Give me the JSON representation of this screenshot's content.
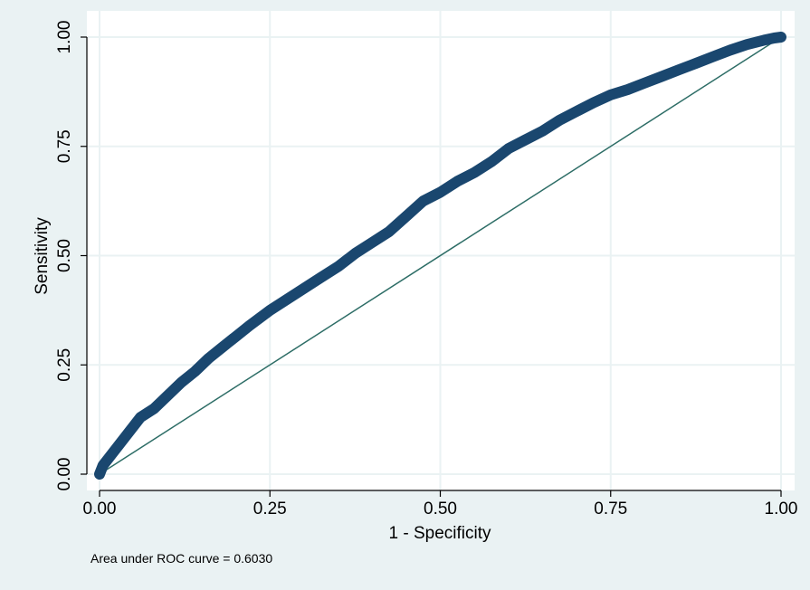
{
  "chart_data": {
    "type": "line",
    "xlabel": "1 - Specificity",
    "ylabel": "Sensitivity",
    "xlim": [
      0,
      1
    ],
    "ylim": [
      0,
      1
    ],
    "xticks": [
      0,
      0.25,
      0.5,
      0.75,
      1
    ],
    "yticks": [
      0,
      0.25,
      0.5,
      0.75,
      1
    ],
    "xtick_labels": [
      "0.00",
      "0.25",
      "0.50",
      "0.75",
      "1.00"
    ],
    "ytick_labels": [
      "0.00",
      "0.25",
      "0.50",
      "0.75",
      "1.00"
    ],
    "grid": true,
    "note": "Area under ROC curve = 0.6030",
    "colors": {
      "background": "#eaf2f3",
      "plot_area": "#ffffff",
      "grid": "#eaf2f3",
      "roc_curve": "#1a476f",
      "reference_line": "#2d6d66"
    },
    "series": [
      {
        "style": "markers",
        "x": [
          0,
          0.005,
          0.015,
          0.03,
          0.045,
          0.06,
          0.08,
          0.1,
          0.12,
          0.14,
          0.16,
          0.18,
          0.2,
          0.22,
          0.25,
          0.275,
          0.3,
          0.325,
          0.35,
          0.375,
          0.4,
          0.425,
          0.45,
          0.475,
          0.5,
          0.525,
          0.55,
          0.575,
          0.6,
          0.625,
          0.65,
          0.675,
          0.7,
          0.725,
          0.75,
          0.775,
          0.8,
          0.825,
          0.85,
          0.875,
          0.9,
          0.925,
          0.95,
          0.975,
          0.99,
          1
        ],
        "y": [
          0,
          0.02,
          0.04,
          0.07,
          0.1,
          0.13,
          0.15,
          0.18,
          0.21,
          0.235,
          0.265,
          0.29,
          0.315,
          0.34,
          0.375,
          0.4,
          0.425,
          0.45,
          0.475,
          0.505,
          0.53,
          0.555,
          0.59,
          0.625,
          0.645,
          0.67,
          0.69,
          0.715,
          0.745,
          0.765,
          0.785,
          0.81,
          0.83,
          0.85,
          0.868,
          0.88,
          0.895,
          0.91,
          0.925,
          0.94,
          0.955,
          0.97,
          0.983,
          0.993,
          0.998,
          1
        ]
      },
      {
        "style": "line",
        "x": [
          0,
          1
        ],
        "y": [
          0,
          1
        ]
      }
    ]
  }
}
